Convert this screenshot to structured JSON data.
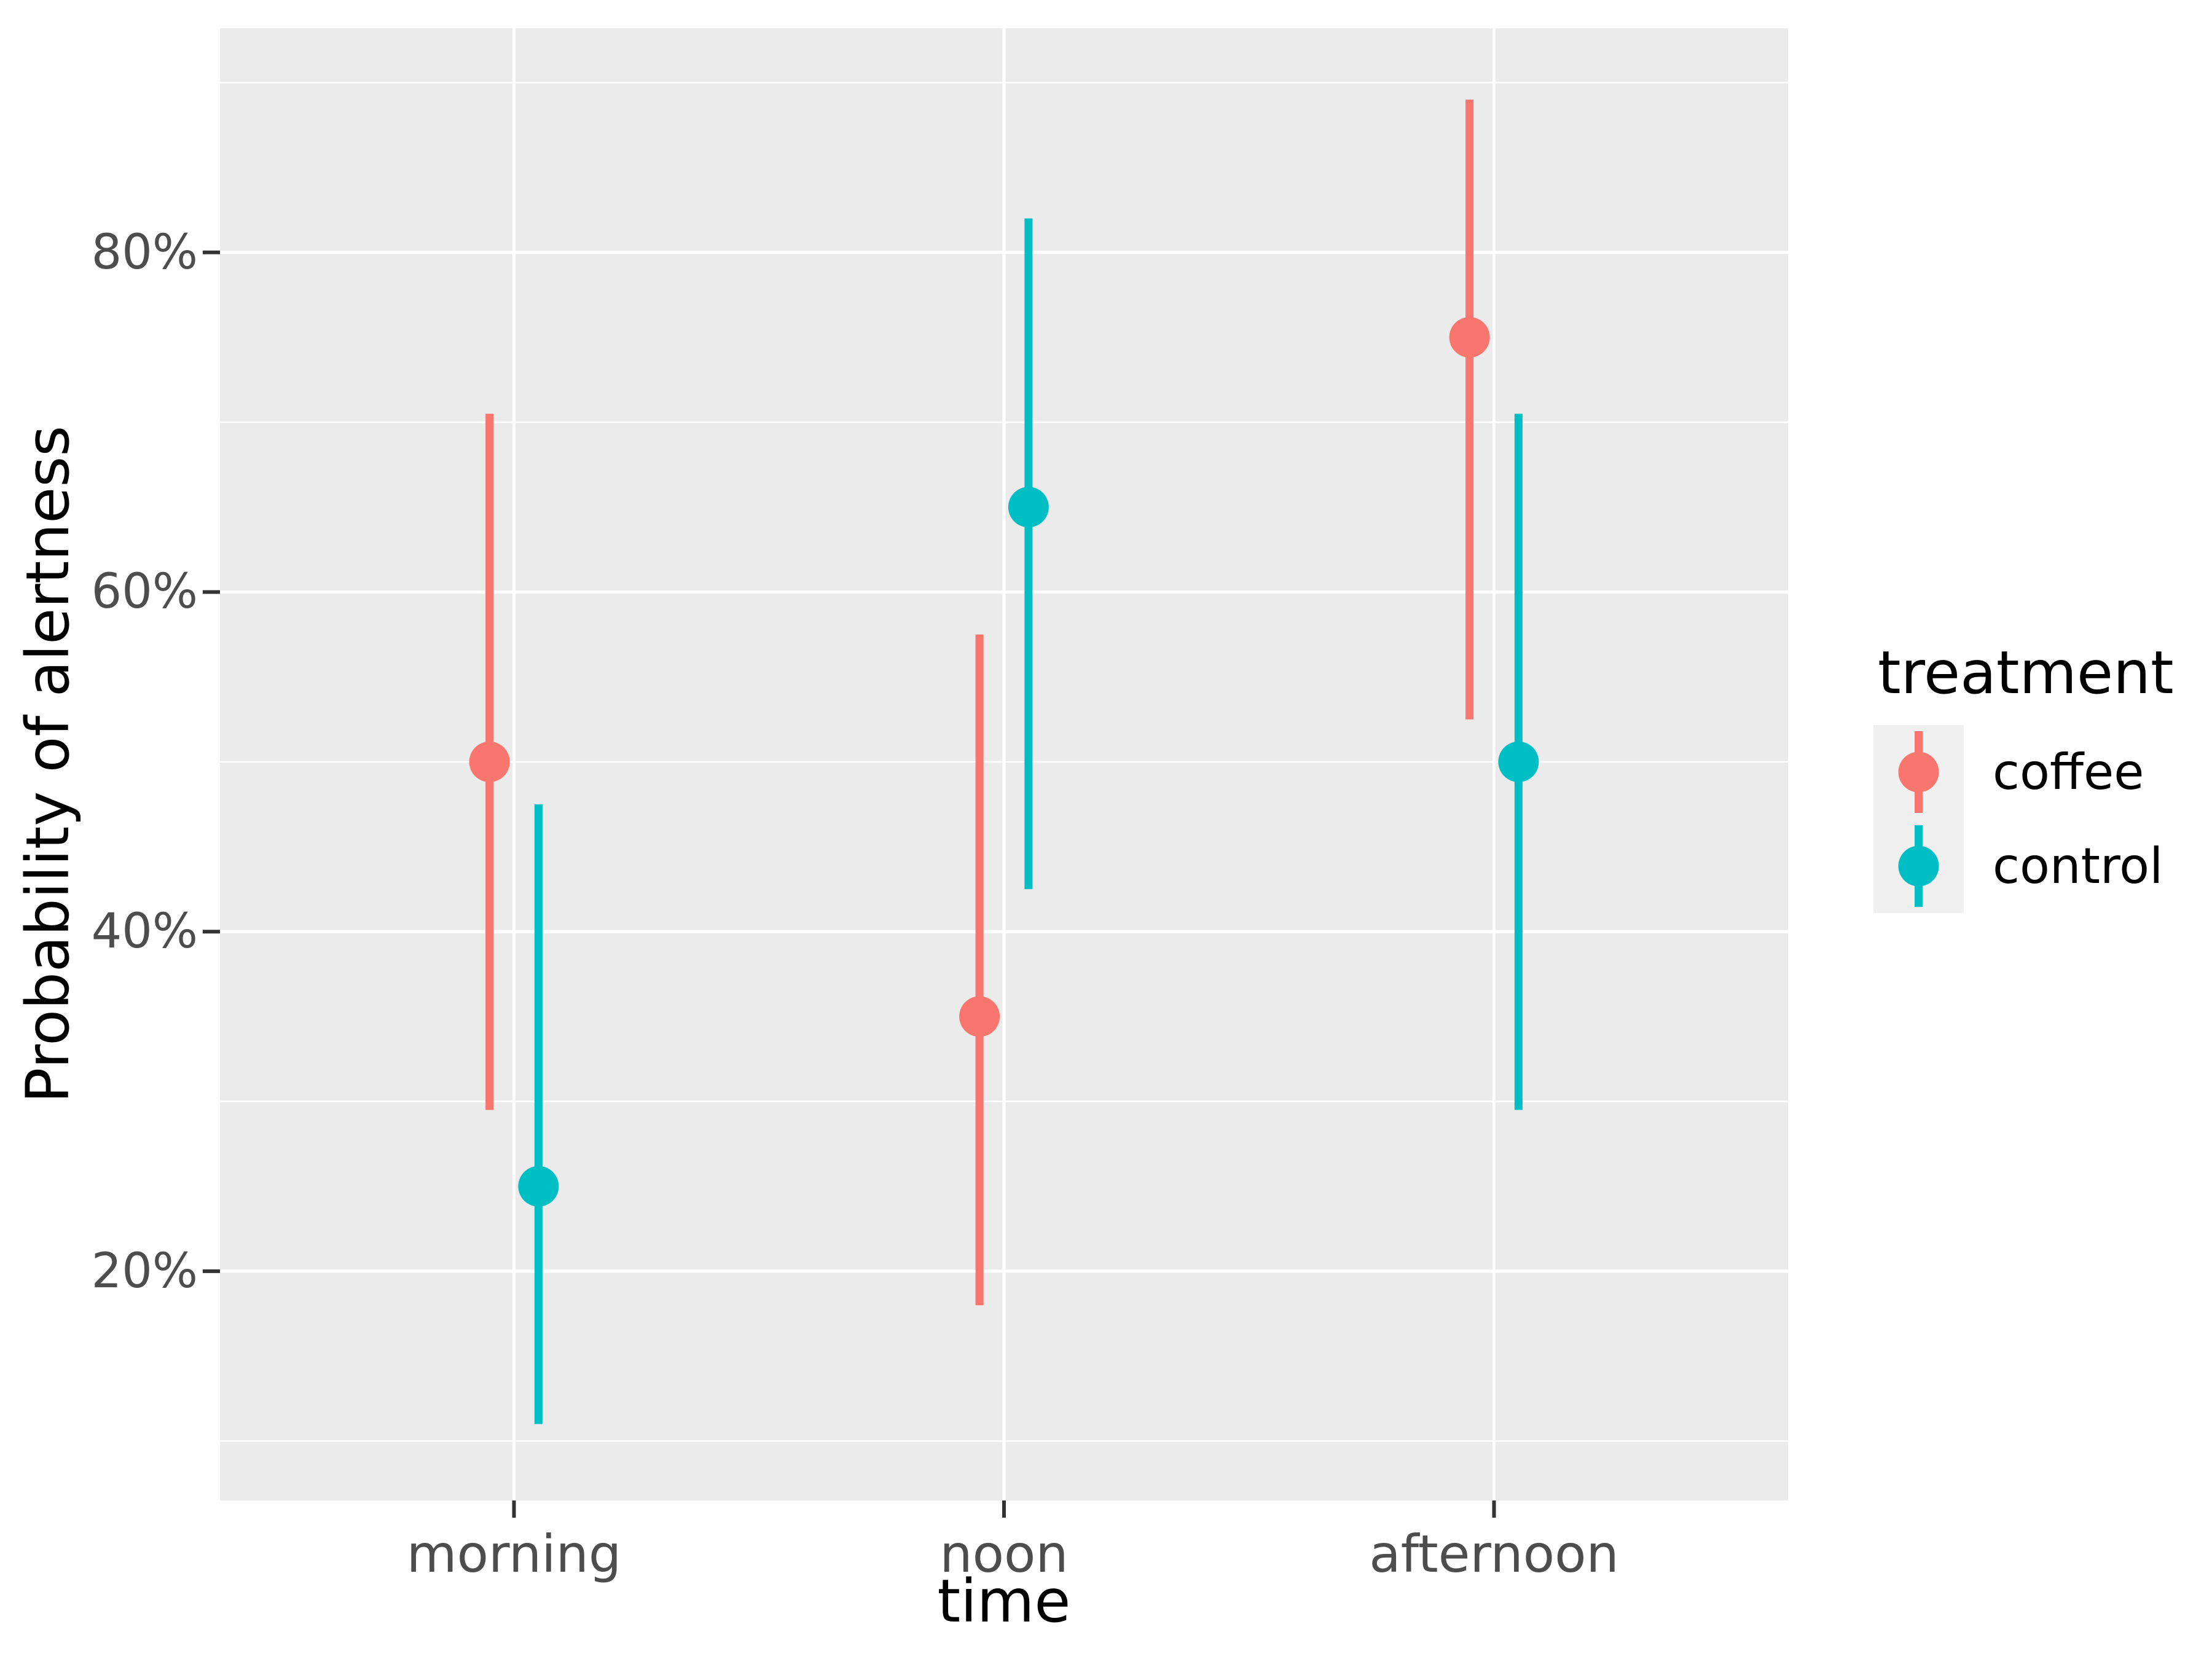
{
  "legend": {
    "title": "treatment",
    "position": "right",
    "items": [
      {
        "label": "coffee",
        "color": "#F8766D"
      },
      {
        "label": "control",
        "color": "#00BFC4"
      }
    ]
  },
  "chart_data": {
    "type": "pointrange",
    "title": "",
    "xlabel": "time",
    "ylabel": "Probability of alertness",
    "categories": [
      "morning",
      "noon",
      "afternoon"
    ],
    "y_axis": {
      "format": "percent",
      "tick_values": [
        20,
        40,
        60,
        80
      ],
      "tick_labels": [
        "20%",
        "40%",
        "60%",
        "80%"
      ],
      "minor_values": [
        10,
        30,
        50,
        70,
        90
      ],
      "ylim": [
        6.5,
        93.2
      ]
    },
    "grid": true,
    "legend_position": "right",
    "series": [
      {
        "name": "coffee",
        "color": "#F8766D",
        "values": [
          {
            "category": "morning",
            "y": 50,
            "ymin": 29.5,
            "ymax": 70.5
          },
          {
            "category": "noon",
            "y": 35,
            "ymin": 18.0,
            "ymax": 57.5
          },
          {
            "category": "afternoon",
            "y": 75,
            "ymin": 52.5,
            "ymax": 89.0
          }
        ]
      },
      {
        "name": "control",
        "color": "#00BFC4",
        "values": [
          {
            "category": "morning",
            "y": 25,
            "ymin": 11.0,
            "ymax": 47.5
          },
          {
            "category": "noon",
            "y": 65,
            "ymin": 42.5,
            "ymax": 82.0
          },
          {
            "category": "afternoon",
            "y": 50,
            "ymin": 29.5,
            "ymax": 70.5
          }
        ]
      }
    ],
    "colors": {
      "panel_bg": "#EBEBEB",
      "grid": "#FFFFFF",
      "axis_text": "#4D4D4D",
      "title_text": "#000000",
      "tick_mark": "#333333",
      "legend_key_bg": "#F0F0F0"
    }
  }
}
